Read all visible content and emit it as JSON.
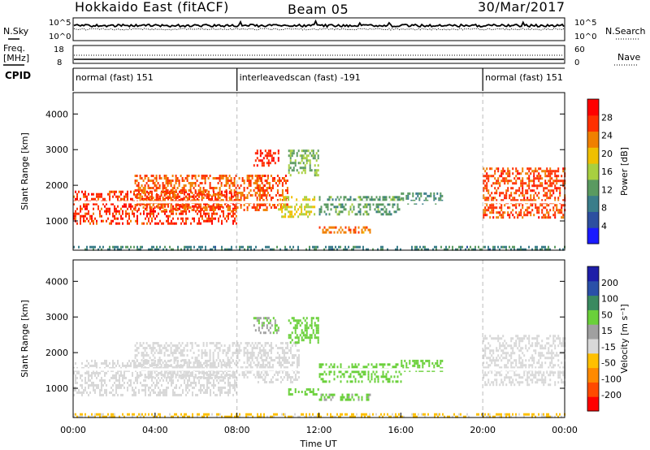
{
  "header": {
    "radar": "Hokkaido East (fitACF)",
    "beam": "Beam 05",
    "date": "30/Mar/2017"
  },
  "top_panels": {
    "nsky_label": "N.Sky",
    "nsky_ticks": [
      "10^5",
      "10^0"
    ],
    "nsearch_label": "N.Search",
    "nsearch_ticks": [
      "10^5",
      "10^0"
    ],
    "freq_label_line1": "Freq.",
    "freq_label_line2": "[MHz]",
    "freq_ticks": [
      "18",
      "8"
    ],
    "nave_label": "Nave",
    "nave_ticks": [
      "60",
      "0"
    ],
    "cpid_label": "CPID",
    "cpid_segments": [
      {
        "label": "normal (fast) 151",
        "start_hour": 0,
        "end_hour": 8
      },
      {
        "label": "interleavedscan (fast) -191",
        "start_hour": 8,
        "end_hour": 20
      },
      {
        "label": "normal (fast) 151",
        "start_hour": 20,
        "end_hour": 24
      }
    ]
  },
  "chart_data": [
    {
      "type": "heatmap",
      "panel": "power",
      "ylabel": "Slant Range [km]",
      "yticks": [
        1000,
        2000,
        3000,
        4000
      ],
      "ylim": [
        180,
        4600
      ],
      "colorbar_label": "Power [dB]",
      "colorbar_ticks": [
        "4",
        "8",
        "12",
        "16",
        "20",
        "24",
        "28"
      ],
      "colorbar_range": [
        0,
        32
      ],
      "colorbar_colors": [
        "#1a1aff",
        "#2d4fa0",
        "#3a7d8a",
        "#5a9a60",
        "#a8d040",
        "#f0c000",
        "#f08000",
        "#ff3000",
        "#ff0000"
      ],
      "regions": [
        {
          "t0": 0.0,
          "t1": 8.0,
          "r0": 950,
          "r1": 1850,
          "value": 27
        },
        {
          "t0": 3.0,
          "t1": 9.5,
          "r0": 1300,
          "r1": 2300,
          "value": 25
        },
        {
          "t0": 8.8,
          "t1": 10.0,
          "r0": 2550,
          "r1": 3000,
          "value": 28
        },
        {
          "t0": 9.0,
          "t1": 10.5,
          "r0": 1400,
          "r1": 2300,
          "value": 26
        },
        {
          "t0": 10.0,
          "t1": 11.8,
          "r0": 1100,
          "r1": 1700,
          "value": 18
        },
        {
          "t0": 10.5,
          "t1": 12.0,
          "r0": 2300,
          "r1": 3000,
          "value": 14
        },
        {
          "t0": 12.0,
          "t1": 14.5,
          "r0": 650,
          "r1": 850,
          "value": 24
        },
        {
          "t0": 12.0,
          "t1": 16.0,
          "r0": 1200,
          "r1": 1700,
          "value": 12
        },
        {
          "t0": 16.0,
          "t1": 18.0,
          "r0": 1500,
          "r1": 1800,
          "value": 11
        },
        {
          "t0": 20.0,
          "t1": 24.0,
          "r0": 1100,
          "r1": 2500,
          "value": 26
        },
        {
          "t0": 0.0,
          "t1": 24.0,
          "r0": 200,
          "r1": 300,
          "value": 10
        }
      ]
    },
    {
      "type": "heatmap",
      "panel": "velocity",
      "ylabel": "Slant Range [km]",
      "yticks": [
        1000,
        2000,
        3000,
        4000
      ],
      "ylim": [
        180,
        4600
      ],
      "xlabel": "Time UT",
      "xticks": [
        "00:00",
        "04:00",
        "08:00",
        "12:00",
        "16:00",
        "20:00",
        "00:00"
      ],
      "colorbar_label": "Velocity [m s⁻¹]",
      "colorbar_ticks": [
        "-200",
        "-100",
        "-50",
        "-15",
        "15",
        "50",
        "100",
        "200"
      ],
      "colorbar_colors": [
        "#ff0000",
        "#ff4a00",
        "#ff8a00",
        "#ffc000",
        "#d8d8d8",
        "#a0a0a0",
        "#6ad03a",
        "#3a8a60",
        "#2a50a8",
        "#1e1ea8"
      ],
      "regions": [
        {
          "t0": 0.0,
          "t1": 8.0,
          "r0": 800,
          "r1": 1800,
          "value": 0
        },
        {
          "t0": 3.0,
          "t1": 9.5,
          "r0": 1300,
          "r1": 2300,
          "value": 0
        },
        {
          "t0": 8.8,
          "t1": 10.0,
          "r0": 2550,
          "r1": 3000,
          "value": 50
        },
        {
          "t0": 9.0,
          "t1": 11.0,
          "r0": 1200,
          "r1": 2300,
          "value": 0
        },
        {
          "t0": 10.5,
          "t1": 12.0,
          "r0": 2300,
          "r1": 3000,
          "value": 60
        },
        {
          "t0": 10.5,
          "t1": 12.0,
          "r0": 800,
          "r1": 1000,
          "value": 60
        },
        {
          "t0": 12.0,
          "t1": 14.5,
          "r0": 650,
          "r1": 850,
          "value": 55
        },
        {
          "t0": 12.0,
          "t1": 16.0,
          "r0": 1200,
          "r1": 1700,
          "value": 70
        },
        {
          "t0": 16.0,
          "t1": 18.0,
          "r0": 1500,
          "r1": 1800,
          "value": 80
        },
        {
          "t0": 20.0,
          "t1": 24.0,
          "r0": 1100,
          "r1": 2500,
          "value": 0
        },
        {
          "t0": 0.0,
          "t1": 24.0,
          "r0": 200,
          "r1": 300,
          "value": -20
        }
      ]
    }
  ]
}
